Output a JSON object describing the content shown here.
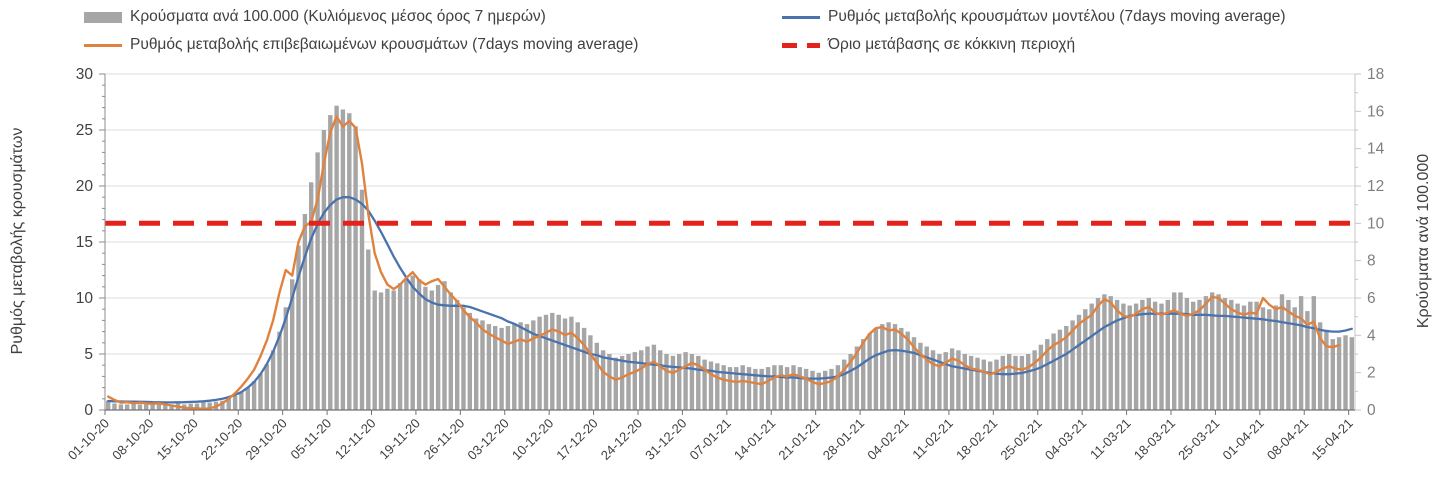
{
  "legend": {
    "items": [
      {
        "label": "Κρούσματα ανά 100.000 (Κυλιόμενος μέσος όρος 7 ημερών)",
        "swatch": "bars"
      },
      {
        "label": "Ρυθμός μεταβολής επιβεβαιωμένων κρουσμάτων (7days moving average)",
        "swatch": "orange"
      },
      {
        "label": "Ρυθμός μεταβολής κρουσμάτων μοντέλου (7days moving average)",
        "swatch": "blue"
      },
      {
        "label": "Όριο μετάβασης σε κόκκινη περιοχή",
        "swatch": "threshold"
      }
    ]
  },
  "chart_data": {
    "type": "combo-bar-line",
    "title": "",
    "colors": {
      "bars": "#a6a6a6",
      "orange": "#e0823f",
      "blue": "#4a73ae",
      "threshold": "#e4221b",
      "grid": "#dcdcdc",
      "axis": "#8c8c8c",
      "tick_text_left": "#404040",
      "tick_text_right": "#7f7f7f",
      "date_text": "#404040"
    },
    "axes": {
      "left": {
        "title": "Ρυθμός μεταβολής κρουσμάτων",
        "min": 0,
        "max": 30,
        "ticks": [
          0,
          5,
          10,
          15,
          20,
          25,
          30
        ],
        "minor_step": 1
      },
      "right": {
        "title": "Κρούσματα ανά 100.000",
        "min": 0,
        "max": 18,
        "ticks": [
          0,
          2,
          4,
          6,
          8,
          10,
          12,
          14,
          16,
          18
        ],
        "minor_step": 1
      },
      "x": {
        "tick_labels": [
          "01-10-20",
          "08-10-20",
          "15-10-20",
          "22-10-20",
          "29-10-20",
          "05-11-20",
          "12-11-20",
          "19-11-20",
          "26-11-20",
          "03-12-20",
          "10-12-20",
          "17-12-20",
          "24-12-20",
          "31-12-20",
          "07-01-21",
          "14-01-21",
          "21-01-21",
          "28-01-21",
          "04-02-21",
          "11-02-21",
          "18-02-21",
          "25-02-21",
          "04-03-21",
          "11-03-21",
          "18-03-21",
          "25-03-21",
          "01-04-21",
          "08-04-21",
          "15-04-21"
        ],
        "label_interval_days": 7
      }
    },
    "threshold": {
      "name": "Όριο μετάβασης σε κόκκινη περιοχή",
      "value_left_axis": 16.67,
      "value_right_axis": 10
    },
    "series": {
      "bars": {
        "name": "Κρούσματα ανά 100.000 (Κυλιόμενος μέσος όρος 7 ημερών)",
        "axis": "right",
        "values": [
          0.5,
          0.35,
          0.3,
          0.3,
          0.35,
          0.3,
          0.3,
          0.3,
          0.35,
          0.3,
          0.3,
          0.35,
          0.3,
          0.35,
          0.35,
          0.4,
          0.4,
          0.45,
          0.5,
          0.6,
          0.75,
          0.95,
          1.2,
          1.55,
          1.95,
          2.45,
          3.2,
          4.2,
          5.5,
          7.0,
          8.8,
          10.5,
          12.2,
          13.8,
          15.0,
          15.8,
          16.3,
          16.1,
          15.9,
          15.2,
          11.8,
          8.6,
          6.4,
          6.3,
          6.5,
          6.4,
          6.8,
          7.0,
          7.2,
          7.0,
          6.6,
          6.4,
          6.7,
          6.9,
          6.3,
          5.9,
          5.5,
          5.2,
          4.9,
          4.8,
          4.6,
          4.5,
          4.4,
          4.5,
          4.6,
          4.7,
          4.6,
          4.8,
          5.0,
          5.1,
          5.2,
          5.1,
          4.9,
          5.0,
          4.7,
          4.4,
          4.0,
          3.6,
          3.2,
          3.0,
          2.8,
          2.9,
          3.0,
          3.1,
          3.2,
          3.4,
          3.5,
          3.2,
          3.0,
          2.9,
          3.0,
          3.1,
          3.0,
          2.9,
          2.7,
          2.6,
          2.5,
          2.4,
          2.3,
          2.3,
          2.4,
          2.3,
          2.2,
          2.2,
          2.3,
          2.4,
          2.4,
          2.3,
          2.4,
          2.3,
          2.2,
          2.1,
          2.0,
          2.1,
          2.2,
          2.4,
          2.7,
          3.0,
          3.4,
          3.8,
          4.1,
          4.4,
          4.6,
          4.7,
          4.6,
          4.4,
          4.2,
          3.9,
          3.6,
          3.4,
          3.2,
          3.0,
          3.1,
          3.3,
          3.2,
          3.0,
          2.9,
          2.8,
          2.7,
          2.6,
          2.7,
          2.9,
          3.0,
          2.9,
          2.9,
          3.0,
          3.2,
          3.5,
          3.8,
          4.1,
          4.3,
          4.5,
          4.8,
          5.1,
          5.4,
          5.7,
          6.0,
          6.2,
          6.1,
          5.9,
          5.7,
          5.6,
          5.7,
          5.9,
          6.0,
          5.8,
          5.7,
          5.9,
          6.3,
          6.3,
          6.0,
          5.8,
          5.9,
          6.1,
          6.3,
          6.2,
          6.0,
          5.9,
          5.7,
          5.6,
          5.8,
          5.8,
          5.5,
          5.4,
          5.6,
          6.2,
          5.9,
          5.5,
          6.1,
          5.3,
          6.1,
          4.7,
          4.3,
          3.8,
          3.9,
          4.0,
          3.9
        ]
      },
      "orange": {
        "name": "Ρυθμός μεταβολής επιβεβαιωμένων κρουσμάτων (7days moving average)",
        "axis": "left",
        "values": [
          1.2,
          0.9,
          0.65,
          0.7,
          0.6,
          0.65,
          0.6,
          0.55,
          0.6,
          0.5,
          0.4,
          0.3,
          0.2,
          0.15,
          0.15,
          0.1,
          0.15,
          0.3,
          0.6,
          1.0,
          1.5,
          2.1,
          2.8,
          3.6,
          4.8,
          6.2,
          8.0,
          10.5,
          12.5,
          12.0,
          15.0,
          16.4,
          16.8,
          18.8,
          22.0,
          24.8,
          26.2,
          25.3,
          25.8,
          25.2,
          22.0,
          17.5,
          14.0,
          12.3,
          11.2,
          10.8,
          11.2,
          11.8,
          12.3,
          11.6,
          11.2,
          11.5,
          11.7,
          11.0,
          10.3,
          9.7,
          8.9,
          8.3,
          7.8,
          7.2,
          6.8,
          6.5,
          6.2,
          5.9,
          6.1,
          6.3,
          6.1,
          6.4,
          6.6,
          6.9,
          7.2,
          7.0,
          6.7,
          6.9,
          6.4,
          5.8,
          5.0,
          4.2,
          3.4,
          3.0,
          2.7,
          2.9,
          3.2,
          3.4,
          3.7,
          4.1,
          4.3,
          3.9,
          3.5,
          3.3,
          3.6,
          3.9,
          4.2,
          4.0,
          3.6,
          3.2,
          2.9,
          2.7,
          2.6,
          2.5,
          2.6,
          2.5,
          2.4,
          2.3,
          2.6,
          2.9,
          3.1,
          3.0,
          3.2,
          3.0,
          2.8,
          2.5,
          2.3,
          2.4,
          2.6,
          3.0,
          3.6,
          4.3,
          5.1,
          6.0,
          6.8,
          7.3,
          7.4,
          7.1,
          7.2,
          6.8,
          6.3,
          5.6,
          5.0,
          4.5,
          4.1,
          3.9,
          4.2,
          4.6,
          4.4,
          4.0,
          3.7,
          3.6,
          3.4,
          3.2,
          3.4,
          3.7,
          3.9,
          3.7,
          3.6,
          3.8,
          4.2,
          4.7,
          5.3,
          5.8,
          6.1,
          6.5,
          7.1,
          7.7,
          8.1,
          8.5,
          9.3,
          9.9,
          9.6,
          8.9,
          8.4,
          8.3,
          8.6,
          9.0,
          9.2,
          8.7,
          8.5,
          8.7,
          8.9,
          8.6,
          8.4,
          8.6,
          8.9,
          9.5,
          10.1,
          10.0,
          9.5,
          9.0,
          8.7,
          8.5,
          8.7,
          8.6,
          10.0,
          9.4,
          9.0,
          9.2,
          8.8,
          8.4,
          8.2,
          7.6,
          7.9,
          6.4,
          5.7,
          5.6,
          5.8,
          null,
          null
        ]
      },
      "blue": {
        "name": "Ρυθμός μεταβολής κρουσμάτων μοντέλου (7days moving average)",
        "axis": "left",
        "values": [
          0.8,
          0.78,
          0.76,
          0.75,
          0.74,
          0.73,
          0.72,
          0.7,
          0.69,
          0.68,
          0.68,
          0.69,
          0.7,
          0.72,
          0.74,
          0.78,
          0.83,
          0.9,
          1.0,
          1.15,
          1.35,
          1.6,
          2.0,
          2.5,
          3.2,
          4.1,
          5.2,
          6.6,
          8.2,
          10.0,
          11.9,
          13.7,
          15.3,
          16.6,
          17.6,
          18.3,
          18.8,
          19.0,
          19.0,
          18.8,
          18.4,
          17.8,
          16.9,
          15.9,
          14.8,
          13.7,
          12.7,
          11.8,
          11.0,
          10.4,
          9.9,
          9.6,
          9.4,
          9.35,
          9.3,
          9.3,
          9.3,
          9.2,
          9.0,
          8.8,
          8.6,
          8.4,
          8.2,
          7.9,
          7.7,
          7.4,
          7.1,
          6.8,
          6.6,
          6.4,
          6.2,
          6.0,
          5.8,
          5.6,
          5.4,
          5.2,
          5.0,
          4.9,
          4.7,
          4.6,
          4.5,
          4.4,
          4.3,
          4.25,
          4.2,
          4.1,
          4.05,
          4.0,
          3.9,
          3.85,
          3.8,
          3.75,
          3.7,
          3.6,
          3.55,
          3.5,
          3.4,
          3.35,
          3.3,
          3.25,
          3.2,
          3.15,
          3.1,
          3.05,
          3.0,
          3.0,
          2.95,
          2.9,
          2.9,
          2.85,
          2.8,
          2.8,
          2.8,
          2.85,
          2.9,
          3.0,
          3.2,
          3.5,
          3.8,
          4.2,
          4.6,
          4.9,
          5.1,
          5.3,
          5.35,
          5.3,
          5.2,
          5.1,
          4.9,
          4.7,
          4.5,
          4.3,
          4.1,
          3.9,
          3.8,
          3.7,
          3.6,
          3.5,
          3.4,
          3.3,
          3.25,
          3.2,
          3.2,
          3.25,
          3.3,
          3.45,
          3.6,
          3.8,
          4.1,
          4.4,
          4.7,
          5.0,
          5.4,
          5.8,
          6.2,
          6.6,
          7.0,
          7.4,
          7.7,
          8.0,
          8.2,
          8.4,
          8.5,
          8.55,
          8.6,
          8.6,
          8.6,
          8.6,
          8.6,
          8.6,
          8.55,
          8.5,
          8.5,
          8.5,
          8.45,
          8.4,
          8.4,
          8.35,
          8.3,
          8.25,
          8.2,
          8.15,
          8.1,
          8.0,
          7.95,
          7.85,
          7.75,
          7.65,
          7.55,
          7.4,
          7.3,
          7.15,
          7.05,
          7.0,
          7.0,
          7.1,
          7.25
        ]
      }
    }
  }
}
